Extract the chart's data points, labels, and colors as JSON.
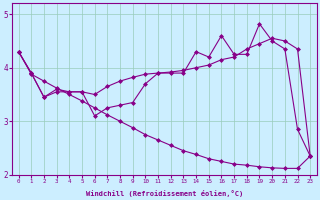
{
  "xlabel": "Windchill (Refroidissement éolien,°C)",
  "background_color": "#cceeff",
  "line_color": "#880088",
  "x": [
    0,
    1,
    2,
    3,
    4,
    5,
    6,
    7,
    8,
    9,
    10,
    11,
    12,
    13,
    14,
    15,
    16,
    17,
    18,
    19,
    20,
    21,
    22,
    23
  ],
  "series1": [
    4.3,
    3.9,
    3.45,
    3.6,
    3.55,
    3.55,
    3.1,
    3.25,
    3.3,
    3.35,
    3.7,
    3.9,
    3.9,
    3.9,
    4.3,
    4.2,
    4.6,
    4.25,
    4.25,
    4.82,
    4.5,
    4.35,
    2.85,
    2.35
  ],
  "series2": [
    4.3,
    3.88,
    3.75,
    3.62,
    3.5,
    3.38,
    3.25,
    3.12,
    3.0,
    2.88,
    2.75,
    2.65,
    2.55,
    2.45,
    2.38,
    2.3,
    2.25,
    2.2,
    2.18,
    2.15,
    2.13,
    2.12,
    2.12,
    2.35
  ],
  "series3": [
    4.3,
    3.9,
    3.45,
    3.55,
    3.55,
    3.55,
    3.5,
    3.65,
    3.75,
    3.82,
    3.88,
    3.9,
    3.92,
    3.95,
    4.0,
    4.05,
    4.15,
    4.2,
    4.35,
    4.45,
    4.55,
    4.5,
    4.35,
    2.35
  ],
  "ylim": [
    2.0,
    5.2
  ],
  "yticks": [
    2,
    3,
    4,
    5
  ],
  "xticks": [
    0,
    1,
    2,
    3,
    4,
    5,
    6,
    7,
    8,
    9,
    10,
    11,
    12,
    13,
    14,
    15,
    16,
    17,
    18,
    19,
    20,
    21,
    22,
    23
  ],
  "grid_color": "#99ccbb",
  "marker": "D",
  "markersize": 2.0,
  "linewidth": 0.8
}
